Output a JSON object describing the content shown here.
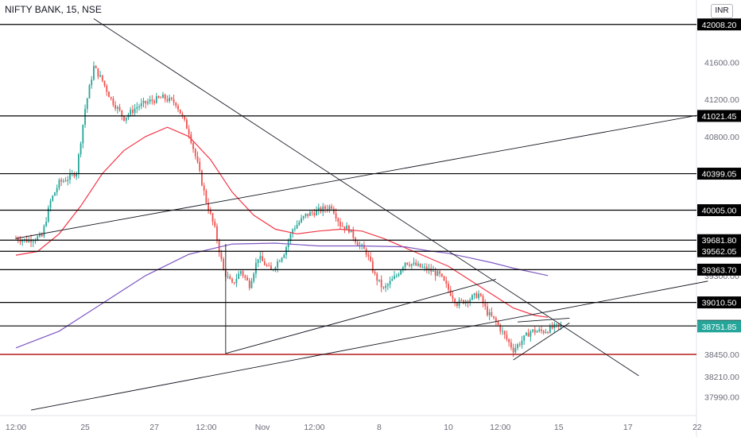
{
  "header": {
    "title": "NIFTY BANK, 15, NSE",
    "currency": "INR"
  },
  "chart_data": {
    "type": "candlestick",
    "symbol": "NIFTY BANK",
    "interval": "15",
    "exchange": "NSE",
    "currency": "INR",
    "ylim": [
      37800,
      42100
    ],
    "y_ticks": [
      37990,
      38210,
      38450,
      38750,
      39010,
      39300,
      39600,
      40000,
      40400,
      40800,
      41200,
      41600,
      42000
    ],
    "y_tick_labels": [
      "37990.00",
      "38210.00",
      "38450.00",
      "38750.00",
      "39010.00",
      "39300.00",
      "39600.00",
      "40000.00",
      "40400.00",
      "40800.00",
      "41200.00",
      "41600.00",
      "42000.00"
    ],
    "x_ticks": [
      {
        "label": "12:00",
        "bar": 0
      },
      {
        "label": "25",
        "bar": 32
      },
      {
        "label": "27",
        "bar": 64
      },
      {
        "label": "12:00",
        "bar": 88
      },
      {
        "label": "Nov",
        "bar": 114
      },
      {
        "label": "12:00",
        "bar": 138
      },
      {
        "label": "8",
        "bar": 168
      },
      {
        "label": "10",
        "bar": 200
      },
      {
        "label": "12:00",
        "bar": 224
      },
      {
        "label": "15",
        "bar": 251
      },
      {
        "label": "17",
        "bar": 283
      },
      {
        "label": "22",
        "bar": 315
      }
    ],
    "horizontal_levels": [
      {
        "value": 42008.2,
        "label": "42008.20",
        "color": "#000000"
      },
      {
        "value": 41021.45,
        "label": "41021.45",
        "color": "#000000"
      },
      {
        "value": 40399.05,
        "label": "40399.05",
        "color": "#000000"
      },
      {
        "value": 40005.0,
        "label": "40005.00",
        "color": "#000000"
      },
      {
        "value": 39681.8,
        "label": "39681.80",
        "color": "#000000"
      },
      {
        "value": 39562.05,
        "label": "39562.05",
        "color": "#000000"
      },
      {
        "value": 39363.7,
        "label": "39363.70",
        "color": "#000000"
      },
      {
        "value": 39010.5,
        "label": "39010.50",
        "color": "#000000"
      },
      {
        "value": 38756.8,
        "label": "38756.80",
        "color": "#000000"
      },
      {
        "value": 38450.0,
        "label": "",
        "color": "#b71c1c"
      }
    ],
    "last_price": {
      "value": 38751.85,
      "label": "38751.85",
      "color": "#26a69a"
    },
    "trendlines": [
      {
        "from": {
          "bar": 36,
          "price": 42070
        },
        "to": {
          "bar": 288,
          "price": 38220
        }
      },
      {
        "from": {
          "bar": 0,
          "price": 39700
        },
        "to": {
          "bar": 325,
          "price": 41070
        }
      },
      {
        "from": {
          "bar": 7,
          "price": 37850
        },
        "to": {
          "bar": 320,
          "price": 39240
        }
      },
      {
        "from": {
          "bar": 97,
          "price": 38460
        },
        "to": {
          "bar": 222,
          "price": 39260
        }
      },
      {
        "from": {
          "bar": 97,
          "price": 38460
        },
        "to": {
          "bar": 97,
          "price": 39640
        }
      },
      {
        "from": {
          "bar": 230,
          "price": 38390
        },
        "to": {
          "bar": 256,
          "price": 38790
        }
      },
      {
        "from": {
          "bar": 232,
          "price": 38800
        },
        "to": {
          "bar": 256,
          "price": 38840
        }
      }
    ],
    "moving_averages": [
      {
        "color": "#f23645",
        "points": [
          [
            0,
            39520
          ],
          [
            10,
            39560
          ],
          [
            20,
            39750
          ],
          [
            30,
            40050
          ],
          [
            40,
            40400
          ],
          [
            50,
            40650
          ],
          [
            60,
            40800
          ],
          [
            70,
            40900
          ],
          [
            80,
            40800
          ],
          [
            90,
            40550
          ],
          [
            100,
            40200
          ],
          [
            110,
            39950
          ],
          [
            120,
            39800
          ],
          [
            130,
            39750
          ],
          [
            140,
            39780
          ],
          [
            150,
            39800
          ],
          [
            160,
            39780
          ],
          [
            170,
            39700
          ],
          [
            180,
            39600
          ],
          [
            190,
            39500
          ],
          [
            200,
            39400
          ],
          [
            210,
            39250
          ],
          [
            220,
            39100
          ],
          [
            230,
            38950
          ],
          [
            240,
            38870
          ],
          [
            246,
            38850
          ]
        ]
      },
      {
        "color": "#7e57c2",
        "points": [
          [
            0,
            38520
          ],
          [
            20,
            38700
          ],
          [
            40,
            39000
          ],
          [
            60,
            39300
          ],
          [
            80,
            39530
          ],
          [
            100,
            39640
          ],
          [
            120,
            39650
          ],
          [
            140,
            39620
          ],
          [
            160,
            39620
          ],
          [
            180,
            39610
          ],
          [
            190,
            39570
          ],
          [
            200,
            39540
          ],
          [
            210,
            39490
          ],
          [
            220,
            39440
          ],
          [
            230,
            39380
          ],
          [
            240,
            39330
          ],
          [
            246,
            39300
          ]
        ]
      }
    ],
    "price_path": [
      [
        0,
        39700
      ],
      [
        5,
        39680
      ],
      [
        12,
        39720
      ],
      [
        16,
        40100
      ],
      [
        20,
        40300
      ],
      [
        24,
        40350
      ],
      [
        28,
        40420
      ],
      [
        32,
        41100
      ],
      [
        36,
        41550
      ],
      [
        40,
        41400
      ],
      [
        44,
        41200
      ],
      [
        50,
        41000
      ],
      [
        56,
        41120
      ],
      [
        62,
        41180
      ],
      [
        68,
        41220
      ],
      [
        74,
        41160
      ],
      [
        80,
        40850
      ],
      [
        84,
        40500
      ],
      [
        88,
        40100
      ],
      [
        92,
        39800
      ],
      [
        96,
        39350
      ],
      [
        100,
        39200
      ],
      [
        104,
        39350
      ],
      [
        108,
        39200
      ],
      [
        112,
        39500
      ],
      [
        118,
        39350
      ],
      [
        124,
        39550
      ],
      [
        128,
        39800
      ],
      [
        134,
        39950
      ],
      [
        140,
        40000
      ],
      [
        146,
        40050
      ],
      [
        150,
        39850
      ],
      [
        154,
        39800
      ],
      [
        158,
        39650
      ],
      [
        162,
        39550
      ],
      [
        166,
        39300
      ],
      [
        170,
        39150
      ],
      [
        176,
        39300
      ],
      [
        180,
        39450
      ],
      [
        186,
        39400
      ],
      [
        192,
        39350
      ],
      [
        196,
        39300
      ],
      [
        200,
        39150
      ],
      [
        204,
        39000
      ],
      [
        210,
        39050
      ],
      [
        214,
        39100
      ],
      [
        218,
        38900
      ],
      [
        222,
        38800
      ],
      [
        226,
        38650
      ],
      [
        230,
        38500
      ],
      [
        234,
        38600
      ],
      [
        238,
        38700
      ],
      [
        244,
        38700
      ],
      [
        250,
        38750
      ],
      [
        252,
        38752
      ]
    ],
    "candle_count": 253
  }
}
